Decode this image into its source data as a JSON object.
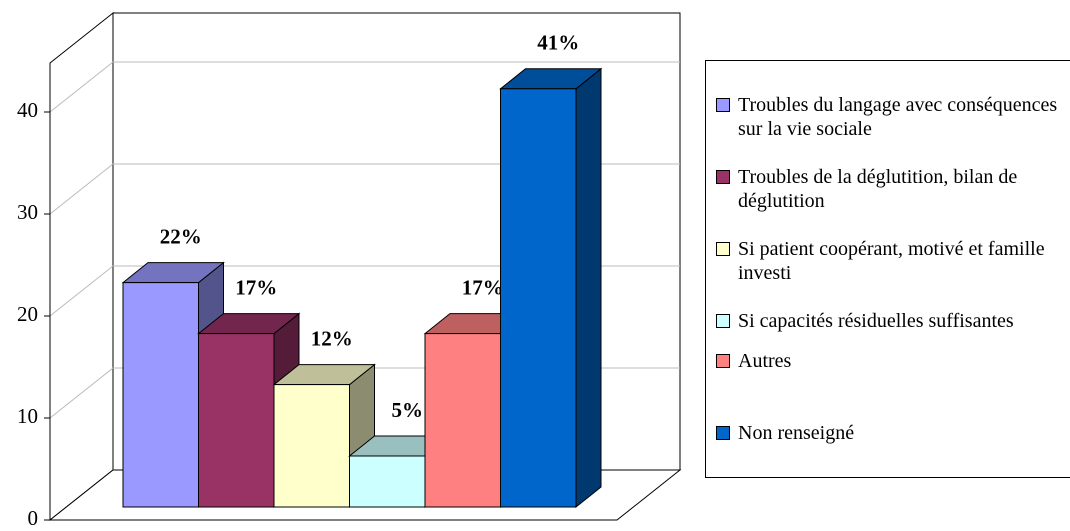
{
  "chart_data": {
    "type": "bar3d",
    "series": [
      {
        "name": "Troubles du langage avec conséquences sur la vie sociale",
        "color": "#9999ff",
        "values": [
          22
        ],
        "value_labels": [
          "22%"
        ]
      },
      {
        "name": "Troubles de la déglutition, bilan de déglutition",
        "color": "#993366",
        "values": [
          17
        ],
        "value_labels": [
          "17%"
        ]
      },
      {
        "name": "Si patient coopérant, motivé et famille investi",
        "color": "#ffffcc",
        "values": [
          12
        ],
        "value_labels": [
          "12%"
        ]
      },
      {
        "name": "Si capacités résiduelles suffisantes",
        "color": "#ccffff",
        "values": [
          5
        ],
        "value_labels": [
          "5%"
        ]
      },
      {
        "name": "Autres",
        "color": "#ff8080",
        "values": [
          17
        ],
        "value_labels": [
          "17%"
        ]
      },
      {
        "name": "Non renseigné",
        "color": "#0066cc",
        "values": [
          41
        ],
        "value_labels": [
          "41%"
        ]
      }
    ],
    "ylim": [
      0,
      45
    ],
    "yticks": [
      0,
      10,
      20,
      30,
      40
    ],
    "grid": true,
    "legend": "right"
  }
}
